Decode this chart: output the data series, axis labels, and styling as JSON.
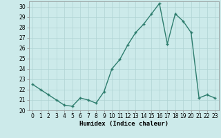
{
  "x": [
    0,
    1,
    2,
    3,
    4,
    5,
    6,
    7,
    8,
    9,
    10,
    11,
    12,
    13,
    14,
    15,
    16,
    17,
    18,
    19,
    20,
    21,
    22,
    23
  ],
  "y": [
    22.5,
    22.0,
    21.5,
    21.0,
    20.5,
    20.4,
    21.2,
    21.0,
    20.7,
    21.8,
    24.0,
    24.9,
    26.3,
    27.5,
    28.3,
    29.3,
    30.3,
    26.4,
    29.3,
    28.6,
    27.5,
    21.2,
    21.5,
    21.2
  ],
  "line_color": "#2e7d6e",
  "marker": "+",
  "marker_size": 3,
  "bg_color": "#cceaea",
  "grid_color": "#b0d4d4",
  "xlabel": "Humidex (Indice chaleur)",
  "xlabel_fontsize": 6.5,
  "xlim": [
    -0.5,
    23.5
  ],
  "ylim": [
    20,
    30.5
  ],
  "yticks": [
    20,
    21,
    22,
    23,
    24,
    25,
    26,
    27,
    28,
    29,
    30
  ],
  "xticks": [
    0,
    1,
    2,
    3,
    4,
    5,
    6,
    7,
    8,
    9,
    10,
    11,
    12,
    13,
    14,
    15,
    16,
    17,
    18,
    19,
    20,
    21,
    22,
    23
  ],
  "tick_fontsize": 5.5,
  "line_width": 1.0
}
